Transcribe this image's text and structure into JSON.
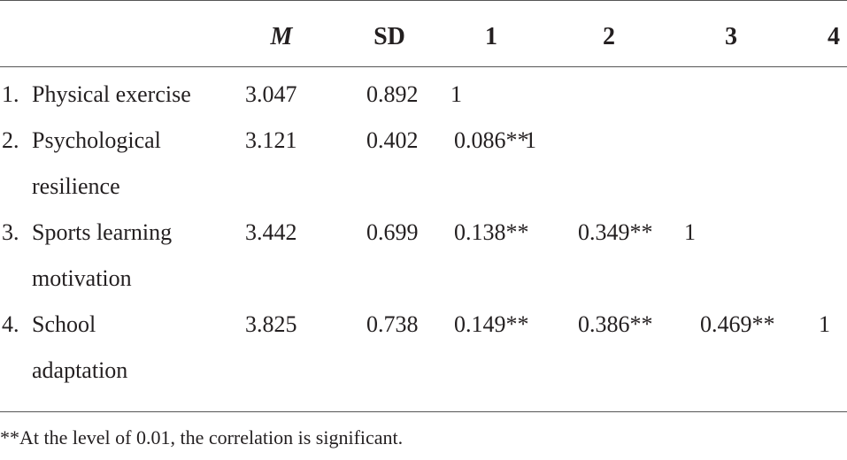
{
  "table": {
    "header": [
      "M",
      "SD",
      "1",
      "2",
      "3",
      "4"
    ],
    "rows": [
      {
        "num": "1.",
        "label": [
          "Physical exercise"
        ],
        "M": "3.047",
        "SD": "0.892",
        "r": [
          "1"
        ]
      },
      {
        "num": "2.",
        "label": [
          "Psychological",
          "resilience"
        ],
        "M": "3.121",
        "SD": "0.402",
        "r": [
          "0.086**",
          "1"
        ]
      },
      {
        "num": "3.",
        "label": [
          "Sports learning",
          "motivation"
        ],
        "M": "3.442",
        "SD": "0.699",
        "r": [
          "0.138**",
          "0.349**",
          "1"
        ]
      },
      {
        "num": "4.",
        "label": [
          "School",
          "adaptation"
        ],
        "M": "3.825",
        "SD": "0.738",
        "r": [
          "0.149**",
          "0.386**",
          "0.469**",
          "1"
        ]
      }
    ]
  },
  "footnote": "**At the level of 0.01, the correlation is significant."
}
